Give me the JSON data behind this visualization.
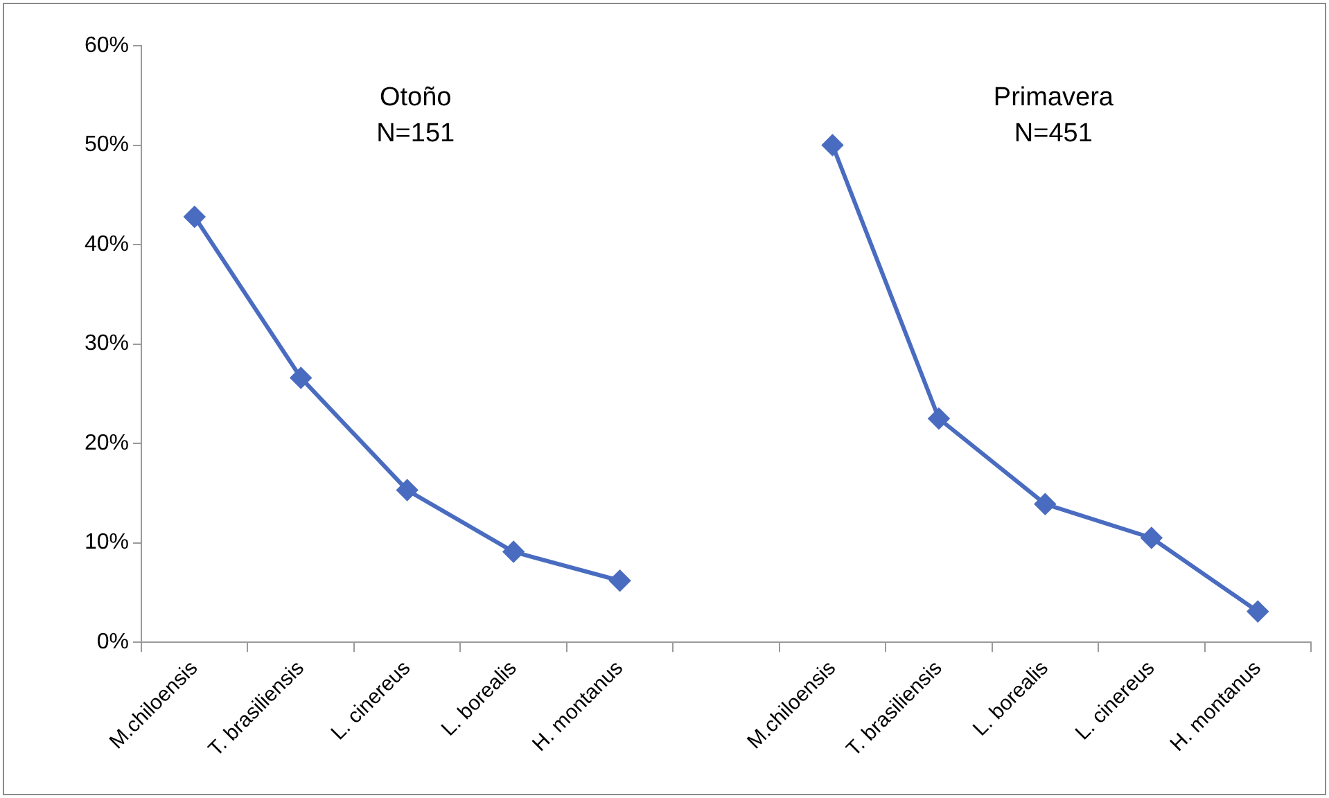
{
  "chart_data": {
    "type": "line",
    "categories": [
      "M.chiloensis",
      "T. brasiliensis",
      "L. cinereus",
      "L. borealis",
      "H. montanus",
      null,
      "M.chiloensis",
      "T. brasiliensis",
      "L. borealis",
      "L. cinereus",
      "H. montanus"
    ],
    "series": [
      {
        "color": "#4a6cc0",
        "values": [
          42.8,
          26.6,
          15.3,
          9.1,
          6.2,
          null,
          50.0,
          22.5,
          13.9,
          10.5,
          3.1
        ]
      }
    ],
    "ylim": [
      0,
      60
    ],
    "yticks": [
      {
        "value": 0,
        "label": "0%"
      },
      {
        "value": 10,
        "label": "10%"
      },
      {
        "value": 20,
        "label": "20%"
      },
      {
        "value": 30,
        "label": "30%"
      },
      {
        "value": 40,
        "label": "40%"
      },
      {
        "value": 50,
        "label": "50%"
      },
      {
        "value": 60,
        "label": "60%"
      }
    ],
    "grid": false,
    "legend": false,
    "marker": "diamond",
    "line_style": "solid",
    "annotations": [
      "Otoño\nN=151",
      "Primavera\nN=451"
    ]
  }
}
